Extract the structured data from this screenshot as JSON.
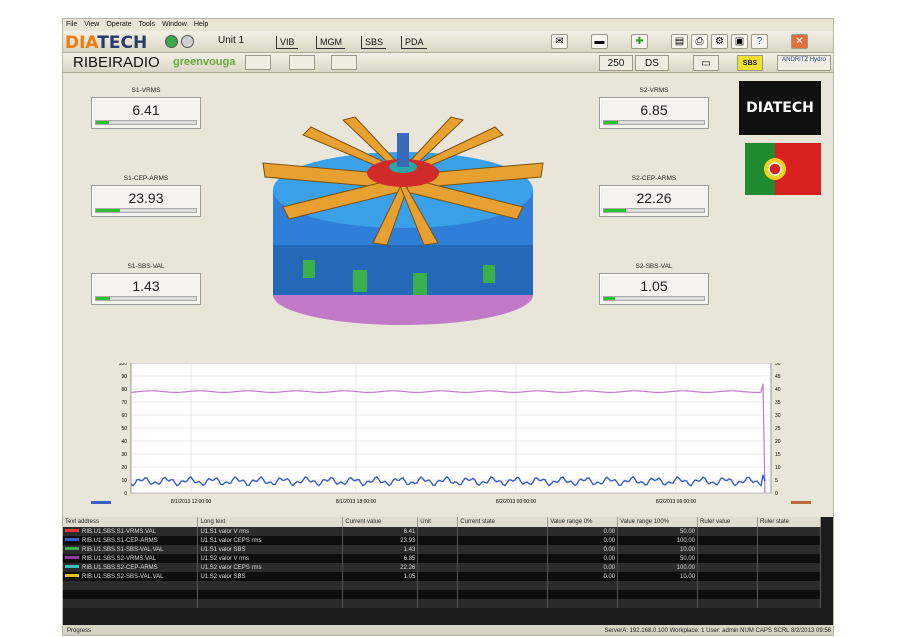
{
  "menu": [
    "File",
    "View",
    "Operate",
    "Tools",
    "Window",
    "Help"
  ],
  "app": {
    "logo_part1": "DIA",
    "logo_part2": "TECH",
    "unit": "Unit 1"
  },
  "nav_tabs": [
    "VIB",
    "MGM",
    "SBS",
    "PDA"
  ],
  "station": {
    "name": "RIBEIRADIO",
    "partner": "greenvouga",
    "counter": "250",
    "mode": "DS",
    "sbs_badge": "SBS",
    "brand_right": "ANDRITZ Hydro"
  },
  "gauges": {
    "s1_vrms": {
      "label": "S1-VRMS",
      "value": "6.41",
      "fill": 0.13
    },
    "s1_cep": {
      "label": "S1-CEP-ARMS",
      "value": "23.93",
      "fill": 0.24
    },
    "s1_sbs": {
      "label": "S1-SBS-VAL",
      "value": "1.43",
      "fill": 0.14
    },
    "s2_vrms": {
      "label": "S2-VRMS",
      "value": "6.85",
      "fill": 0.14
    },
    "s2_cep": {
      "label": "S2-CEP-ARMS",
      "value": "22.26",
      "fill": 0.22
    },
    "s2_sbs": {
      "label": "S2-SBS-VAL",
      "value": "1.05",
      "fill": 0.11
    }
  },
  "side_logo": "DIATECH",
  "chart_data": {
    "type": "line",
    "left_ylim": [
      0,
      100
    ],
    "right_ylim": [
      0,
      50
    ],
    "left_ticks": [
      "100",
      "90",
      "80",
      "70",
      "60",
      "50",
      "40",
      "30",
      "20",
      "10",
      "0"
    ],
    "right_ticks": [
      "50",
      "45",
      "40",
      "35",
      "30",
      "25",
      "20",
      "15",
      "10",
      "5",
      "0"
    ],
    "x_ticks": [
      "8/1/2013 12:00:00",
      "8/1/2013 18:00:00",
      "8/2/2013 00:00:00",
      "8/2/2013 06:00:00"
    ],
    "grid": true,
    "series": [
      {
        "color": "#c07ac8",
        "level": 78
      },
      {
        "color": "#3a5ec8",
        "level": 9
      }
    ]
  },
  "table": {
    "columns": [
      "Text address",
      "Long text",
      "Current value",
      "Unit",
      "Current state",
      "Value range 0%",
      "Value range 100%",
      "Ruler value",
      "Ruler state"
    ],
    "rows": [
      {
        "color": "#e03a2a",
        "address": "RIB.U1.SBS.S1-VRMS.VAL",
        "long": "U1.S1 valor V rms",
        "current": "6.41",
        "range0": "0.00",
        "range100": "50.00"
      },
      {
        "color": "#3a5ec8",
        "address": "RIB.U1.SBS.S1-CEP-ARMS",
        "long": "U1.S1 valor CEPS rms",
        "current": "23.93",
        "range0": "0.00",
        "range100": "100.00"
      },
      {
        "color": "#3ab04a",
        "address": "RIB.U1.SBS.S1-SBS-VAL.VAL",
        "long": "U1.S1 valor SBS",
        "current": "1.43",
        "range0": "0.00",
        "range100": "10.00"
      },
      {
        "color": "#8a3aa8",
        "address": "RIB.U1.SBS.S2-VRMS.VAL",
        "long": "U1.S2 valor V rms",
        "current": "6.85",
        "range0": "0.00",
        "range100": "50.00"
      },
      {
        "color": "#3ac0c0",
        "address": "RIB.U1.SBS.S2-CEP-ARMS",
        "long": "U1.S2 valor CEPS rms",
        "current": "22.26",
        "range0": "0.00",
        "range100": "100.00"
      },
      {
        "color": "#e8c020",
        "address": "RIB.U1.SBS.S2-SBS-VAL.VAL",
        "long": "U1.S2 valor SBS",
        "current": "1.05",
        "range0": "0.00",
        "range100": "10.00"
      }
    ]
  },
  "status": {
    "left": "Progress",
    "right": "ServerA: 192.168.0.100   Workplace: 1   User: admin   NUM   CAPS   SCRL   8/2/2013   09:56"
  }
}
